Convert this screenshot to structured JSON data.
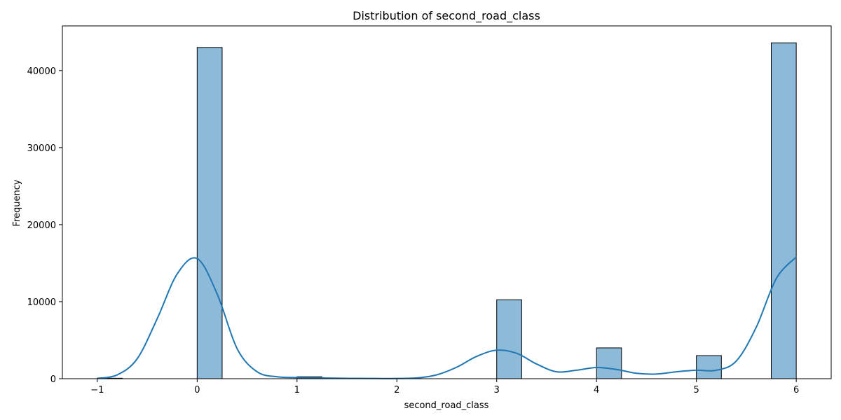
{
  "chart_data": {
    "type": "bar",
    "title": "Distribution of second_road_class",
    "xlabel": "second_road_class",
    "ylabel": "Frequency",
    "xlim": [
      -1.35,
      6.35
    ],
    "ylim": [
      0,
      45800
    ],
    "xticks": [
      -1,
      0,
      1,
      2,
      3,
      4,
      5,
      6
    ],
    "xtick_labels": [
      "−1",
      "0",
      "1",
      "2",
      "3",
      "4",
      "5",
      "6"
    ],
    "yticks": [
      0,
      10000,
      20000,
      30000,
      40000
    ],
    "ytick_labels": [
      "0",
      "10000",
      "20000",
      "30000",
      "40000"
    ],
    "bins": [
      {
        "x0": -1.0,
        "x1": -0.75,
        "count": 60
      },
      {
        "x0": 0.0,
        "x1": 0.25,
        "count": 43000
      },
      {
        "x0": 1.0,
        "x1": 1.25,
        "count": 250
      },
      {
        "x0": 3.0,
        "x1": 3.25,
        "count": 10250
      },
      {
        "x0": 4.0,
        "x1": 4.25,
        "count": 4000
      },
      {
        "x0": 5.0,
        "x1": 5.25,
        "count": 3000
      },
      {
        "x0": 5.75,
        "x1": 6.0,
        "count": 43600
      }
    ],
    "kde": {
      "x": [
        -1.0,
        -0.8,
        -0.6,
        -0.4,
        -0.2,
        0.0,
        0.2,
        0.4,
        0.6,
        0.8,
        1.0,
        1.2,
        1.5,
        1.8,
        2.0,
        2.2,
        2.4,
        2.6,
        2.8,
        3.0,
        3.2,
        3.4,
        3.6,
        3.8,
        4.0,
        4.2,
        4.4,
        4.6,
        4.8,
        5.0,
        5.2,
        5.4,
        5.6,
        5.8,
        6.0
      ],
      "y": [
        50,
        500,
        2600,
        7800,
        13600,
        15600,
        11000,
        3900,
        900,
        250,
        150,
        100,
        50,
        30,
        30,
        100,
        500,
        1500,
        2900,
        3700,
        3300,
        1900,
        900,
        1100,
        1450,
        1200,
        700,
        600,
        900,
        1100,
        1100,
        2300,
        6700,
        13000,
        15800
      ]
    },
    "colors": {
      "bar_fill": "#8ebad9",
      "bar_edge": "#000000",
      "kde_line": "#1f77b4"
    },
    "grid": false,
    "legend": "none"
  }
}
